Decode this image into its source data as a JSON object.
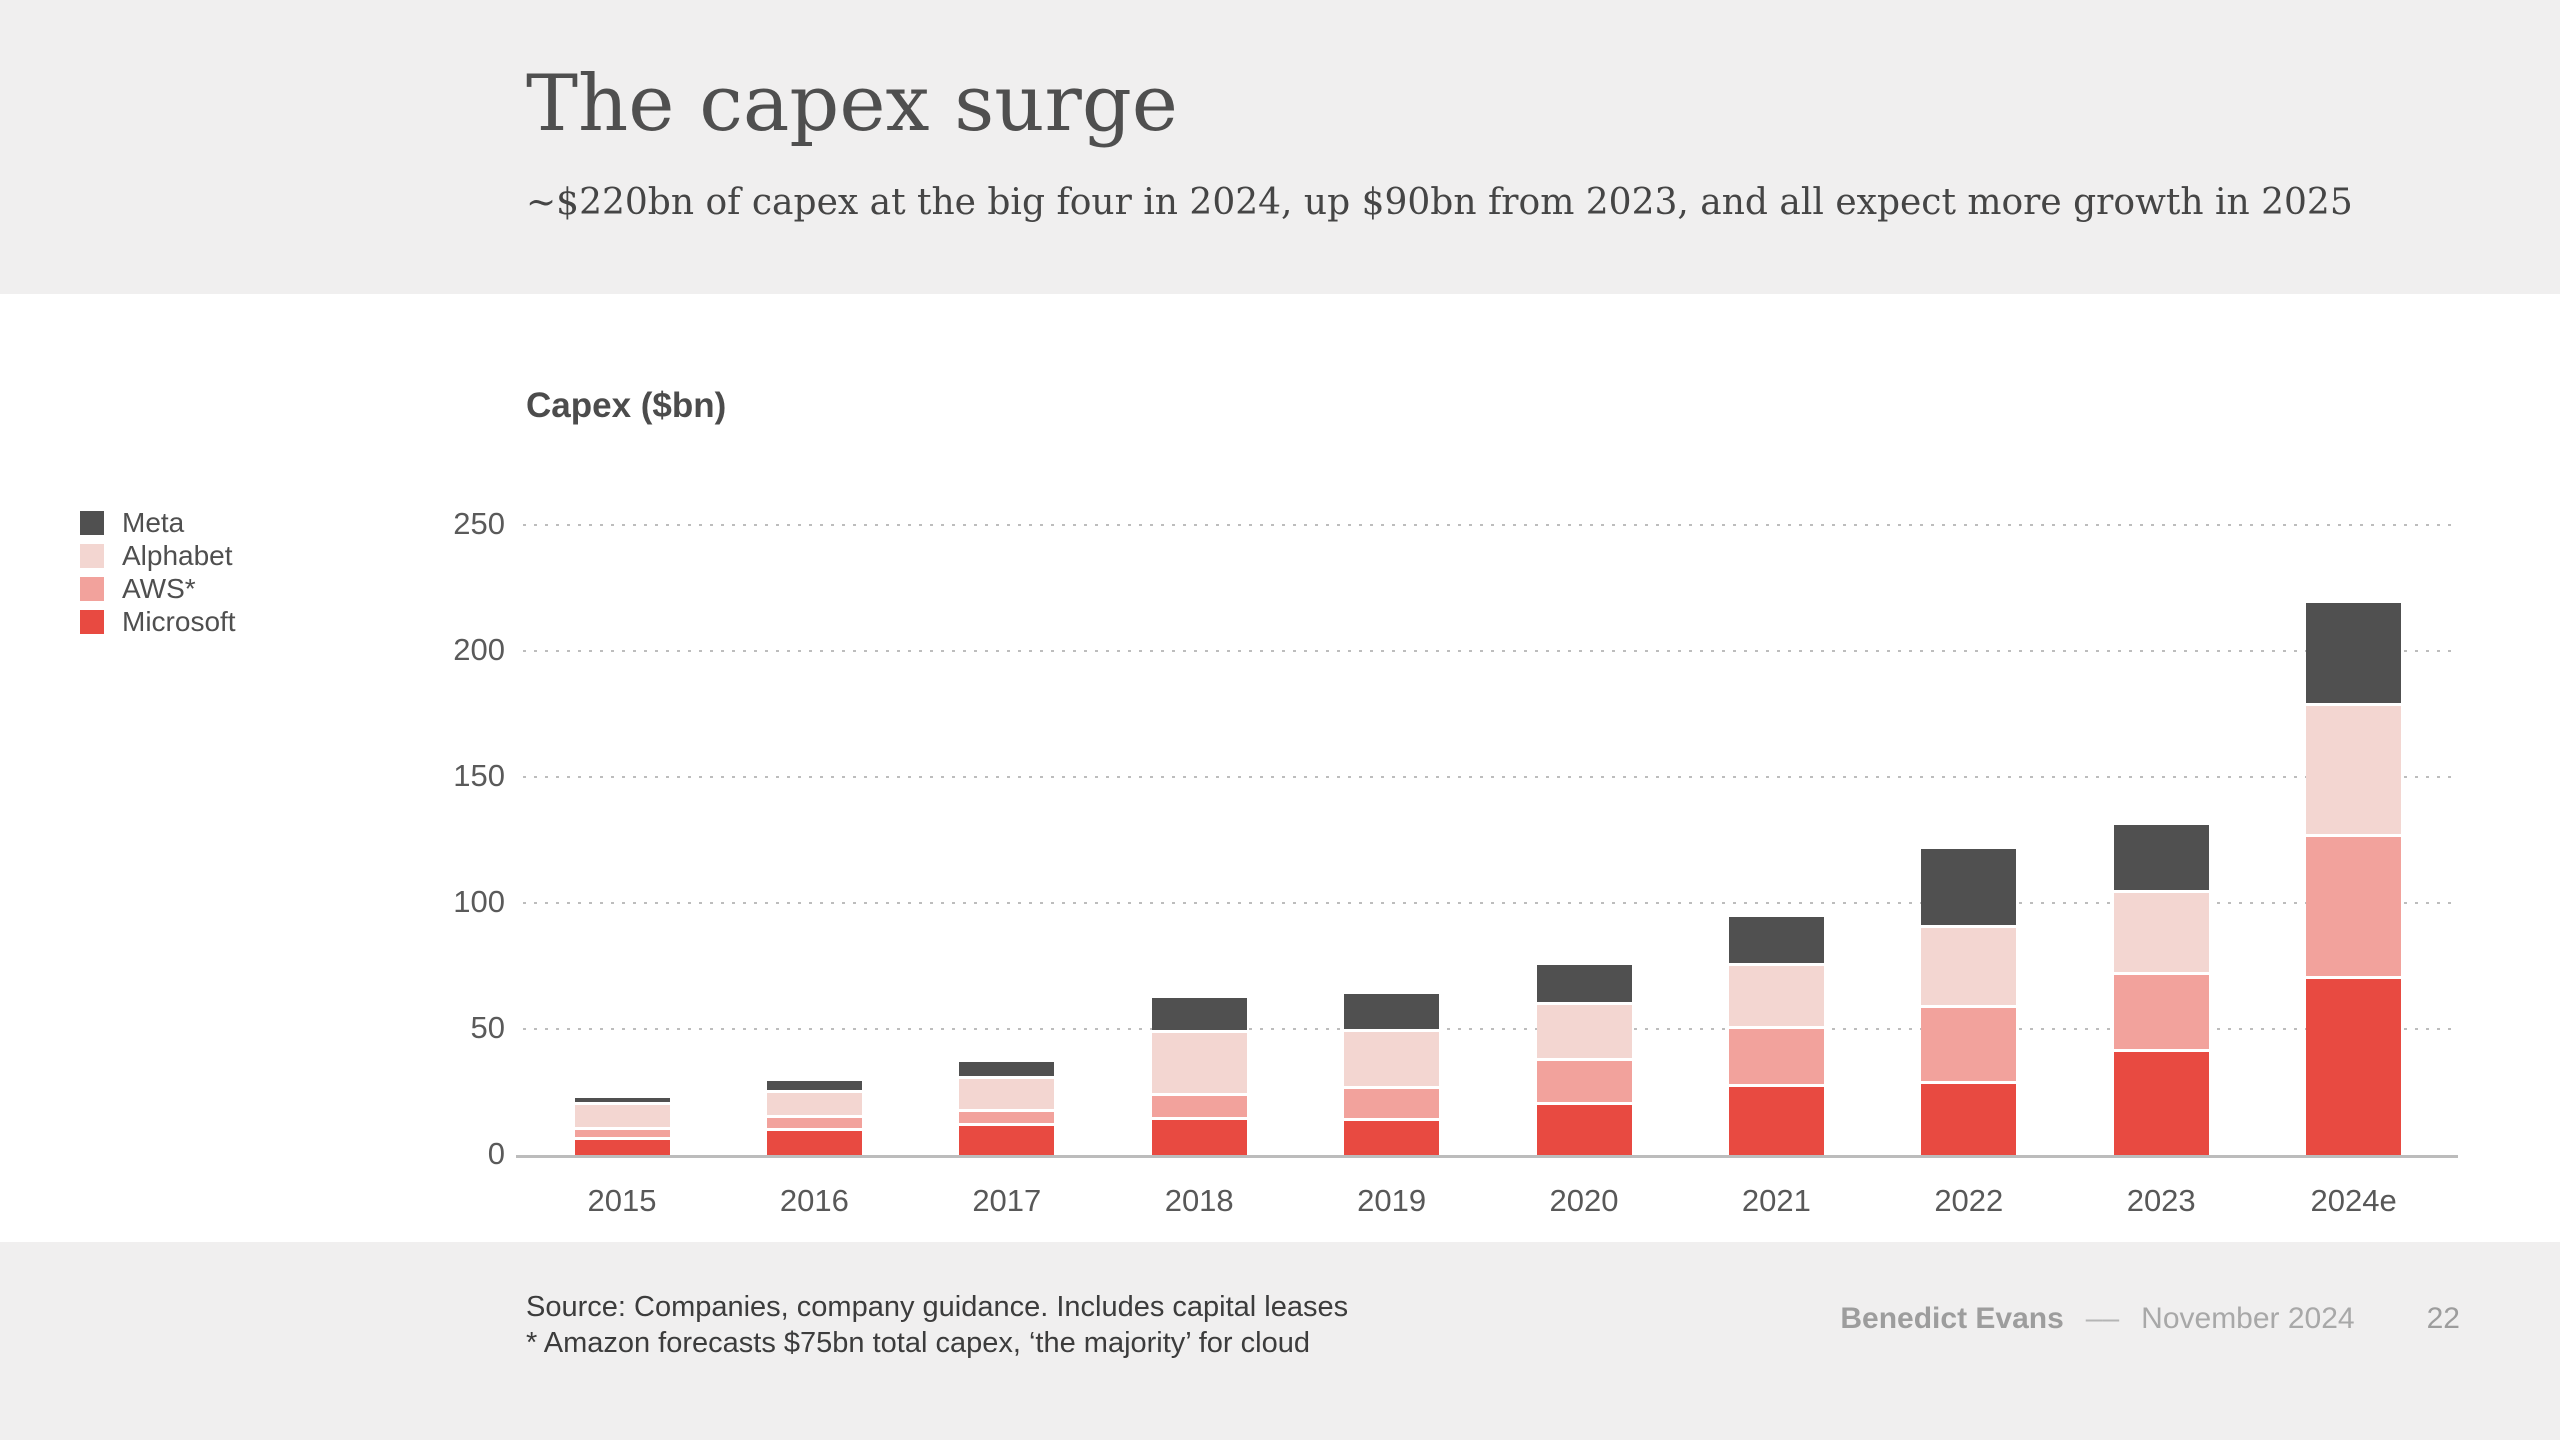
{
  "slide": {
    "title": "The capex surge",
    "subtitle": "~$220bn of capex at the big four in 2024, up $90bn from 2023, and all expect more growth in 2025"
  },
  "chart_data": {
    "type": "bar",
    "stacked": true,
    "title": "Capex ($bn)",
    "xlabel": "",
    "ylabel": "Capex ($bn)",
    "ylim": [
      0,
      250
    ],
    "yticks": [
      0,
      50,
      100,
      150,
      200,
      250
    ],
    "grid": "dotted horizontal",
    "legend_position": "left",
    "legend_order_top_to_bottom": [
      "Meta",
      "Alphabet",
      "AWS*",
      "Microsoft"
    ],
    "categories": [
      "2015",
      "2016",
      "2017",
      "2018",
      "2019",
      "2020",
      "2021",
      "2022",
      "2023",
      "2024e"
    ],
    "series": [
      {
        "name": "Microsoft",
        "color": "#e84a41",
        "values": [
          6,
          9.5,
          11.5,
          14,
          13.5,
          20,
          27,
          28,
          41,
          70
        ]
      },
      {
        "name": "AWS*",
        "color": "#f2a29c",
        "values": [
          4,
          5,
          5.5,
          9.5,
          12.5,
          17.5,
          23,
          30.5,
          30.5,
          56
        ]
      },
      {
        "name": "Alphabet",
        "color": "#f3d6d1",
        "values": [
          10,
          10,
          13,
          25,
          23,
          22,
          25,
          31.5,
          32.5,
          52
        ]
      },
      {
        "name": "Meta",
        "color": "#505050",
        "values": [
          2.5,
          5,
          7,
          14,
          15,
          16,
          19.5,
          31.5,
          27,
          41
        ]
      }
    ],
    "totals_approx": [
      22.5,
      29.5,
      37,
      62.5,
      64,
      75.5,
      94.5,
      121.5,
      131,
      219
    ]
  },
  "footer": {
    "source_line1": "Source: Companies, company guidance. Includes capital leases",
    "source_line2": "* Amazon forecasts $75bn total capex, ‘the majority’ for cloud",
    "author": "Benedict Evans",
    "separator": "––",
    "date": "November 2024",
    "page_number": "22"
  },
  "colors": {
    "band_background": "#f0efef",
    "chart_background": "#ffffff",
    "microsoft": "#e84a41",
    "aws": "#f2a29c",
    "alphabet": "#f3d6d1",
    "meta": "#505050",
    "axis_line": "#bcbcbc",
    "gridline": "#bdbdbd",
    "text_dark": "#4f4f4f",
    "text_muted": "#a8a8a8"
  }
}
